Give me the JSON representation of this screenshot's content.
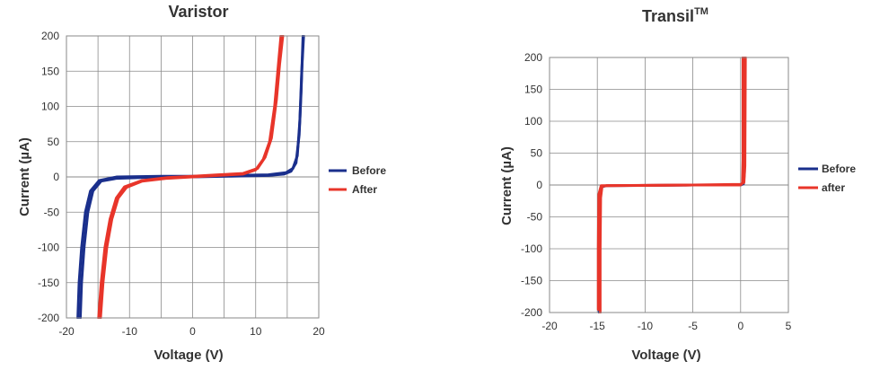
{
  "chart_data": [
    {
      "type": "line",
      "title": "Varistor",
      "title_sup": "",
      "xlabel": "Voltage (V)",
      "ylabel": "Current (µA)",
      "xlim": [
        -20,
        20
      ],
      "ylim": [
        -200,
        200
      ],
      "x_ticks": [
        "-20",
        "-10",
        "0",
        "10",
        "20"
      ],
      "y_ticks": [
        "200",
        "150",
        "100",
        "50",
        "0",
        "-50",
        "-100",
        "-150",
        "-200"
      ],
      "grid": true,
      "legend_position": "right",
      "series": [
        {
          "name": "Before",
          "color": "#1a2f8c",
          "curves": [
            [
              [
                -17.8,
                -200
              ],
              [
                -17.6,
                -150
              ],
              [
                -17.2,
                -100
              ],
              [
                -16.6,
                -50
              ],
              [
                -15.8,
                -20
              ],
              [
                -14.5,
                -6
              ],
              [
                -12.0,
                -2
              ],
              [
                -5.0,
                0
              ],
              [
                0,
                0
              ],
              [
                6.0,
                1
              ],
              [
                12.0,
                2
              ],
              [
                14.5,
                4
              ],
              [
                15.6,
                8
              ],
              [
                16.4,
                20
              ],
              [
                16.9,
                60
              ],
              [
                17.2,
                120
              ],
              [
                17.5,
                200
              ]
            ],
            [
              [
                -18.2,
                -200
              ],
              [
                -18.0,
                -150
              ],
              [
                -17.6,
                -100
              ],
              [
                -17.0,
                -50
              ],
              [
                -16.2,
                -20
              ],
              [
                -14.8,
                -5
              ],
              [
                -12.0,
                0
              ],
              [
                -5.0,
                1
              ],
              [
                0,
                1
              ],
              [
                6.0,
                2
              ],
              [
                12.0,
                3
              ],
              [
                14.8,
                6
              ],
              [
                15.9,
                12
              ],
              [
                16.6,
                30
              ],
              [
                17.0,
                80
              ],
              [
                17.3,
                150
              ],
              [
                17.6,
                200
              ]
            ]
          ]
        },
        {
          "name": "After",
          "color": "#e8352a",
          "curves": [
            [
              [
                -14.6,
                -200
              ],
              [
                -14.2,
                -150
              ],
              [
                -13.6,
                -100
              ],
              [
                -12.8,
                -60
              ],
              [
                -11.8,
                -30
              ],
              [
                -10.5,
                -15
              ],
              [
                -8.0,
                -6
              ],
              [
                -4.0,
                -2
              ],
              [
                0,
                0
              ],
              [
                4.0,
                2
              ],
              [
                8.0,
                4
              ],
              [
                10.0,
                10
              ],
              [
                11.2,
                25
              ],
              [
                12.2,
                50
              ],
              [
                13.0,
                100
              ],
              [
                13.5,
                150
              ],
              [
                14.0,
                200
              ]
            ],
            [
              [
                -14.9,
                -200
              ],
              [
                -14.5,
                -150
              ],
              [
                -13.9,
                -100
              ],
              [
                -13.1,
                -60
              ],
              [
                -12.1,
                -30
              ],
              [
                -10.8,
                -14
              ],
              [
                -8.0,
                -5
              ],
              [
                -4.0,
                -1
              ],
              [
                0,
                1
              ],
              [
                4.0,
                3
              ],
              [
                8.0,
                5
              ],
              [
                10.3,
                12
              ],
              [
                11.5,
                28
              ],
              [
                12.5,
                55
              ],
              [
                13.3,
                110
              ],
              [
                13.8,
                160
              ],
              [
                14.3,
                200
              ]
            ]
          ]
        }
      ]
    },
    {
      "type": "line",
      "title": "Transil",
      "title_sup": "TM",
      "xlabel": "Voltage (V)",
      "ylabel": "Current (µA)",
      "xlim": [
        -20,
        5
      ],
      "ylim": [
        -200,
        200
      ],
      "x_ticks": [
        "-20",
        "-15",
        "-10",
        "-5",
        "0",
        "5"
      ],
      "y_ticks": [
        "200",
        "150",
        "100",
        "50",
        "0",
        "-50",
        "-100",
        "-150",
        "-200"
      ],
      "grid": true,
      "legend_position": "right",
      "series": [
        {
          "name": "Before",
          "color": "#1a2f8c",
          "curves": [
            [
              [
                -14.8,
                -200
              ],
              [
                -14.8,
                -100
              ],
              [
                -14.75,
                -20
              ],
              [
                -14.6,
                -3
              ],
              [
                -14.0,
                -1
              ],
              [
                -5.0,
                0
              ],
              [
                0,
                0
              ],
              [
                0.3,
                2
              ],
              [
                0.4,
                20
              ],
              [
                0.4,
                200
              ]
            ]
          ]
        },
        {
          "name": "after",
          "color": "#e8352a",
          "curves": [
            [
              [
                -14.7,
                -200
              ],
              [
                -14.7,
                -100
              ],
              [
                -14.65,
                -20
              ],
              [
                -14.5,
                -2
              ],
              [
                -14.0,
                -1
              ],
              [
                -5.0,
                0
              ],
              [
                0,
                1
              ],
              [
                0.35,
                4
              ],
              [
                0.45,
                30
              ],
              [
                0.5,
                200
              ]
            ],
            [
              [
                -14.9,
                -195
              ],
              [
                -14.9,
                -100
              ],
              [
                -14.85,
                -15
              ],
              [
                -14.6,
                -1
              ],
              [
                -5.0,
                0
              ],
              [
                0,
                0
              ],
              [
                0.2,
                3
              ],
              [
                0.25,
                40
              ],
              [
                0.25,
                200
              ]
            ]
          ]
        }
      ]
    }
  ]
}
